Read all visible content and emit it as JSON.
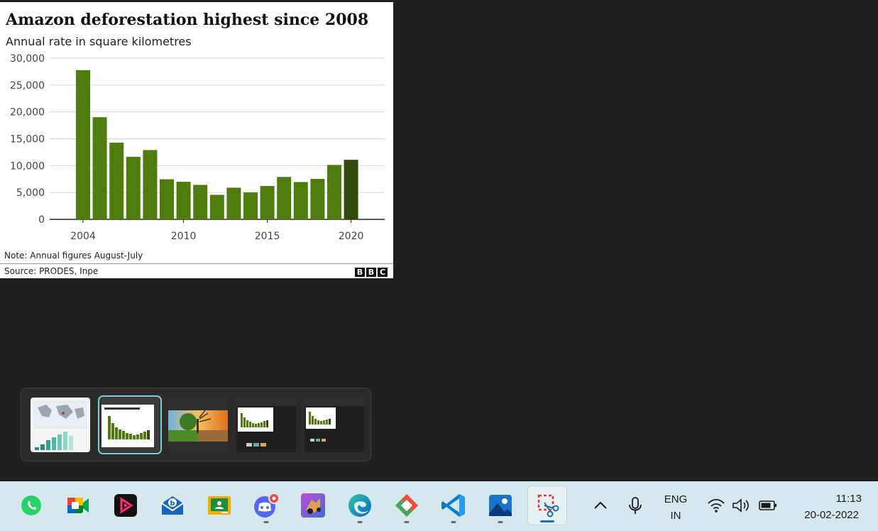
{
  "chart": {
    "title": "Amazon deforestation highest since 2008",
    "subtitle": "Annual rate in square kilometres",
    "note": "Note: Annual figures August-July",
    "source": "Source: PRODES, Inpe",
    "logo_letters": [
      "B",
      "B",
      "C"
    ]
  },
  "chart_data": {
    "type": "bar",
    "categories": [
      "2004",
      "2005",
      "2006",
      "2007",
      "2008",
      "2009",
      "2010",
      "2011",
      "2012",
      "2013",
      "2014",
      "2015",
      "2016",
      "2017",
      "2018",
      "2019",
      "2020"
    ],
    "values": [
      27772,
      19014,
      14286,
      11651,
      12911,
      7464,
      7000,
      6418,
      4571,
      5891,
      5012,
      6207,
      7893,
      6947,
      7536,
      10129,
      11088
    ],
    "x_tick_labels": [
      "2004",
      "2010",
      "2015",
      "2020"
    ],
    "y_tick_labels": [
      "0",
      "5,000",
      "10,000",
      "15,000",
      "20,000",
      "25,000",
      "30,000"
    ],
    "ylim": [
      0,
      30000
    ],
    "grid": true,
    "bar_color": "#4e7d0e",
    "highlight_color": "#2f4a0a",
    "highlight_index": 16
  },
  "thumbnails": [
    {
      "name": "thumb-map-chart",
      "active": false
    },
    {
      "name": "thumb-deforestation-chart",
      "active": true
    },
    {
      "name": "thumb-landscape-photo",
      "active": false
    },
    {
      "name": "thumb-screenshot-1",
      "active": false
    },
    {
      "name": "thumb-screenshot-2",
      "active": false
    }
  ],
  "taskbar": {
    "apps": [
      {
        "name": "whatsapp-icon",
        "running": false
      },
      {
        "name": "google-meet-icon",
        "running": false
      },
      {
        "name": "media-app-icon",
        "running": false
      },
      {
        "name": "mail-app-icon",
        "running": false
      },
      {
        "name": "google-classroom-icon",
        "running": false
      },
      {
        "name": "discord-icon",
        "running": true
      },
      {
        "name": "game-app-icon",
        "running": false
      },
      {
        "name": "edge-icon",
        "running": true
      },
      {
        "name": "git-app-icon",
        "running": true
      },
      {
        "name": "vscode-icon",
        "running": true
      },
      {
        "name": "photos-icon",
        "running": true
      },
      {
        "name": "snipping-tool-icon",
        "running": true,
        "active": true
      }
    ],
    "tray": {
      "lang_line1": "ENG",
      "lang_line2": "IN",
      "time": "11:13",
      "date": "20-02-2022"
    },
    "colors": {
      "accent": "#1a73a8",
      "background": "#d5e8ee"
    }
  }
}
